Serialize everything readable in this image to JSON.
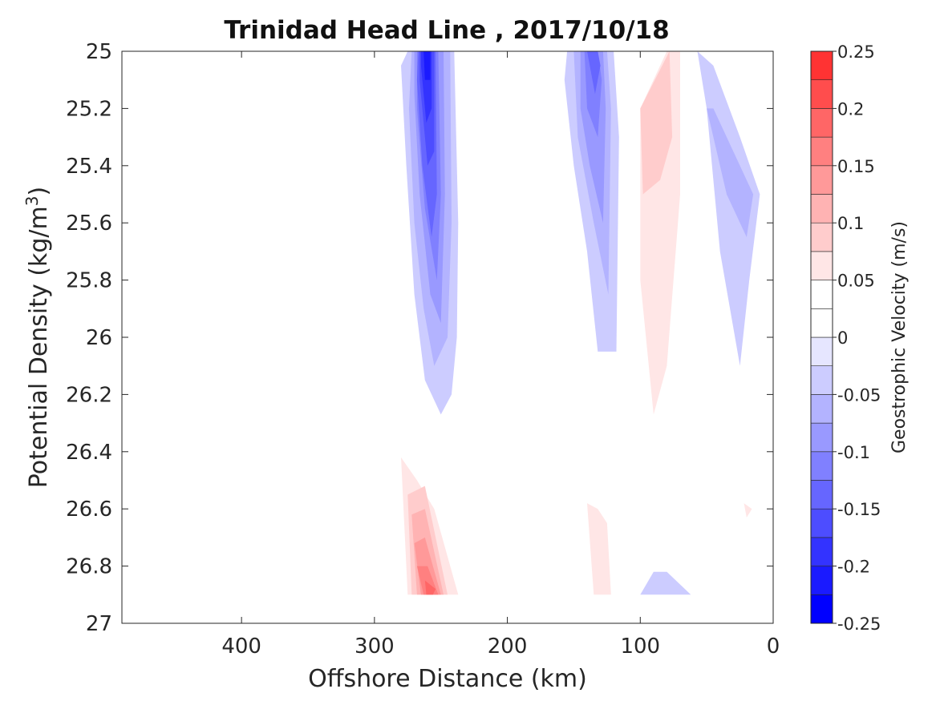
{
  "chart_data": {
    "type": "filled-contour",
    "title": "Trinidad Head Line , 2017/10/18",
    "xlabel": "Offshore Distance (km)",
    "ylabel_text": "Potential Density (kg/m",
    "ylabel_sup": "3",
    "ylabel_close": ")",
    "x_reversed": true,
    "xlim": [
      490,
      0
    ],
    "ylim": [
      25,
      27
    ],
    "y_reversed": true,
    "xticks": [
      400,
      300,
      200,
      100,
      0
    ],
    "xtick_labels": [
      "400",
      "300",
      "200",
      "100",
      "0"
    ],
    "yticks": [
      25,
      25.2,
      25.4,
      25.6,
      25.8,
      26,
      26.2,
      26.4,
      26.6,
      26.8,
      27
    ],
    "ytick_labels": [
      "25",
      "25.2",
      "25.4",
      "25.6",
      "25.8",
      "26",
      "26.2",
      "26.4",
      "26.6",
      "26.8",
      "27"
    ],
    "grid": false,
    "colorbar": {
      "label": "Geostrophic Velocity (m/s)",
      "range": [
        -0.25,
        0.25
      ],
      "levels": [
        -0.25,
        -0.225,
        -0.2,
        -0.175,
        -0.15,
        -0.125,
        -0.1,
        -0.075,
        -0.05,
        -0.025,
        0,
        0.025,
        0.05,
        0.075,
        0.1,
        0.125,
        0.15,
        0.175,
        0.2,
        0.225,
        0.25
      ],
      "tick_values": [
        0.25,
        0.2,
        0.15,
        0.1,
        0.05,
        0,
        -0.05,
        -0.1,
        -0.15,
        -0.2,
        -0.25
      ],
      "tick_labels": [
        "0.25",
        "0.2",
        "0.15",
        "0.1",
        "0.05",
        "0",
        "-0.05",
        "-0.1",
        "-0.15",
        "-0.2",
        "-0.25"
      ],
      "colors_low_to_high": [
        "#0000ff",
        "#1a1aff",
        "#3333ff",
        "#4d4dff",
        "#6666ff",
        "#8080ff",
        "#9999ff",
        "#b3b3ff",
        "#ccccff",
        "#e6e6ff",
        "#ffffff",
        "#ffffff",
        "#ffe6e6",
        "#ffcccc",
        "#ffb3b3",
        "#ff9999",
        "#ff8080",
        "#ff6666",
        "#ff4d4d",
        "#ff3333",
        "#ff0000"
      ]
    },
    "regions": [
      {
        "name": "offshore-jet-core",
        "value": -0.05,
        "points": [
          [
            275,
            25
          ],
          [
            240,
            25
          ],
          [
            237,
            25.6
          ],
          [
            238,
            26.0
          ],
          [
            242,
            26.2
          ],
          [
            250,
            26.27
          ],
          [
            262,
            26.15
          ],
          [
            270,
            25.85
          ],
          [
            276,
            25.4
          ],
          [
            280,
            25.05
          ]
        ]
      },
      {
        "name": "offshore-jet-core",
        "value": -0.075,
        "points": [
          [
            272,
            25
          ],
          [
            243,
            25
          ],
          [
            242,
            25.6
          ],
          [
            245,
            26.0
          ],
          [
            255,
            26.1
          ],
          [
            263,
            25.9
          ],
          [
            270,
            25.6
          ],
          [
            274,
            25.2
          ]
        ]
      },
      {
        "name": "offshore-jet-core",
        "value": -0.1,
        "points": [
          [
            270,
            25
          ],
          [
            248,
            25
          ],
          [
            247,
            25.5
          ],
          [
            250,
            25.95
          ],
          [
            258,
            25.85
          ],
          [
            266,
            25.5
          ],
          [
            270,
            25.15
          ]
        ]
      },
      {
        "name": "offshore-jet-core",
        "value": -0.125,
        "points": [
          [
            268,
            25
          ],
          [
            252,
            25
          ],
          [
            250,
            25.5
          ],
          [
            253,
            25.8
          ],
          [
            262,
            25.55
          ],
          [
            268,
            25.2
          ]
        ]
      },
      {
        "name": "offshore-jet-core",
        "value": -0.15,
        "points": [
          [
            267,
            25
          ],
          [
            254,
            25
          ],
          [
            253,
            25.5
          ],
          [
            257,
            25.65
          ],
          [
            264,
            25.4
          ],
          [
            268,
            25.1
          ]
        ]
      },
      {
        "name": "offshore-jet-core",
        "value": -0.175,
        "points": [
          [
            266,
            25
          ],
          [
            255,
            25
          ],
          [
            255,
            25.35
          ],
          [
            260,
            25.4
          ],
          [
            266,
            25.1
          ]
        ]
      },
      {
        "name": "offshore-jet-core",
        "value": -0.2,
        "points": [
          [
            265,
            25
          ],
          [
            257,
            25
          ],
          [
            257,
            25.2
          ],
          [
            261,
            25.25
          ],
          [
            265,
            25.05
          ]
        ]
      },
      {
        "name": "offshore-jet-core",
        "value": -0.225,
        "points": [
          [
            263,
            25
          ],
          [
            258,
            25
          ],
          [
            258,
            25.1
          ],
          [
            262,
            25.1
          ]
        ]
      },
      {
        "name": "inshore-jet",
        "value": -0.05,
        "points": [
          [
            155,
            25
          ],
          [
            120,
            25
          ],
          [
            116,
            25.3
          ],
          [
            118,
            26.05
          ],
          [
            132,
            26.05
          ],
          [
            140,
            25.7
          ],
          [
            150,
            25.4
          ],
          [
            157,
            25.1
          ]
        ]
      },
      {
        "name": "inshore-jet",
        "value": -0.075,
        "points": [
          [
            150,
            25
          ],
          [
            125,
            25
          ],
          [
            122,
            25.2
          ],
          [
            124,
            25.85
          ],
          [
            135,
            25.6
          ],
          [
            147,
            25.3
          ]
        ]
      },
      {
        "name": "inshore-jet",
        "value": -0.1,
        "points": [
          [
            145,
            25
          ],
          [
            128,
            25
          ],
          [
            126,
            25.2
          ],
          [
            128,
            25.6
          ],
          [
            138,
            25.4
          ],
          [
            145,
            25.2
          ]
        ]
      },
      {
        "name": "inshore-jet",
        "value": -0.125,
        "points": [
          [
            142,
            25
          ],
          [
            132,
            25
          ],
          [
            129,
            25.1
          ],
          [
            132,
            25.3
          ],
          [
            140,
            25.2
          ]
        ]
      },
      {
        "name": "inshore-jet",
        "value": -0.15,
        "points": [
          [
            140,
            25
          ],
          [
            132,
            25
          ],
          [
            130,
            25.05
          ],
          [
            134,
            25.15
          ]
        ]
      },
      {
        "name": "nearshore-flow",
        "value": -0.05,
        "points": [
          [
            57,
            25
          ],
          [
            50,
            25.2
          ],
          [
            40,
            25.7
          ],
          [
            25,
            26.1
          ],
          [
            18,
            25.8
          ],
          [
            10,
            25.5
          ],
          [
            25,
            25.3
          ],
          [
            45,
            25.05
          ]
        ]
      },
      {
        "name": "nearshore-flow",
        "value": -0.075,
        "points": [
          [
            50,
            25.2
          ],
          [
            35,
            25.5
          ],
          [
            20,
            25.65
          ],
          [
            15,
            25.5
          ],
          [
            30,
            25.35
          ],
          [
            45,
            25.2
          ]
        ]
      },
      {
        "name": "poleward-flow",
        "value": 0.05,
        "points": [
          [
            70,
            25
          ],
          [
            80,
            25
          ],
          [
            100,
            25.2
          ],
          [
            100,
            25.8
          ],
          [
            90,
            26.27
          ],
          [
            80,
            26.1
          ],
          [
            70,
            25.5
          ]
        ]
      },
      {
        "name": "poleward-flow",
        "value": 0.075,
        "points": [
          [
            78,
            25
          ],
          [
            100,
            25.2
          ],
          [
            98,
            25.5
          ],
          [
            85,
            25.45
          ],
          [
            76,
            25.3
          ]
        ]
      },
      {
        "name": "deep-undercurrent",
        "value": 0.05,
        "points": [
          [
            280,
            26.42
          ],
          [
            275,
            26.9
          ],
          [
            237,
            26.9
          ],
          [
            255,
            26.6
          ],
          [
            268,
            26.5
          ]
        ]
      },
      {
        "name": "deep-undercurrent",
        "value": 0.075,
        "points": [
          [
            275,
            26.55
          ],
          [
            262,
            26.52
          ],
          [
            245,
            26.9
          ],
          [
            272,
            26.9
          ]
        ]
      },
      {
        "name": "deep-undercurrent",
        "value": 0.1,
        "points": [
          [
            272,
            26.62
          ],
          [
            262,
            26.6
          ],
          [
            248,
            26.9
          ],
          [
            268,
            26.9
          ]
        ]
      },
      {
        "name": "deep-undercurrent",
        "value": 0.125,
        "points": [
          [
            270,
            26.72
          ],
          [
            262,
            26.7
          ],
          [
            250,
            26.9
          ],
          [
            265,
            26.9
          ]
        ]
      },
      {
        "name": "deep-undercurrent",
        "value": 0.15,
        "points": [
          [
            268,
            26.8
          ],
          [
            260,
            26.8
          ],
          [
            252,
            26.9
          ],
          [
            263,
            26.9
          ]
        ]
      },
      {
        "name": "deep-undercurrent",
        "value": 0.175,
        "points": [
          [
            262,
            26.85
          ],
          [
            254,
            26.88
          ],
          [
            256,
            26.9
          ],
          [
            261,
            26.9
          ]
        ]
      },
      {
        "name": "deep-patch",
        "value": 0.05,
        "points": [
          [
            140,
            26.58
          ],
          [
            135,
            26.9
          ],
          [
            122,
            26.9
          ],
          [
            125,
            26.65
          ],
          [
            132,
            26.6
          ]
        ]
      },
      {
        "name": "deep-patch",
        "value": -0.05,
        "points": [
          [
            90,
            26.82
          ],
          [
            80,
            26.82
          ],
          [
            62,
            26.9
          ],
          [
            100,
            26.9
          ]
        ]
      },
      {
        "name": "deep-patch",
        "value": 0.05,
        "points": [
          [
            22,
            26.58
          ],
          [
            20,
            26.63
          ],
          [
            16,
            26.6
          ]
        ]
      }
    ]
  }
}
